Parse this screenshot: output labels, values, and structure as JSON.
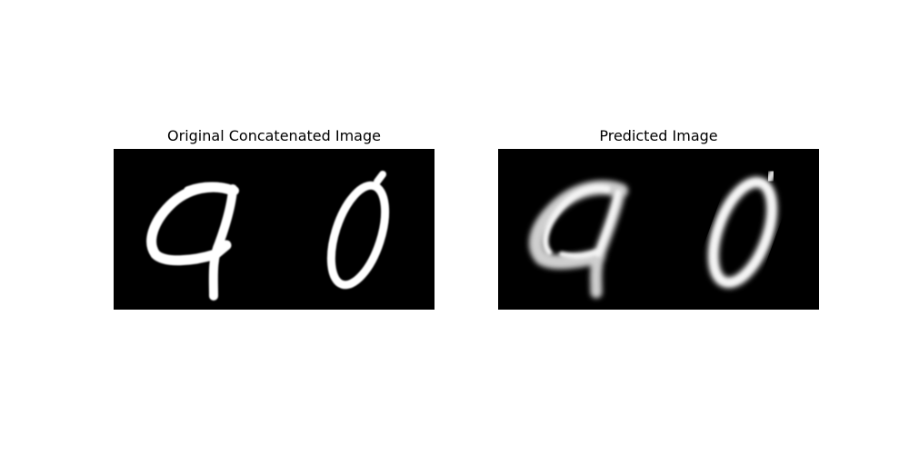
{
  "figure": {
    "background": "#ffffff"
  },
  "panels": {
    "original": {
      "title": "Original Concatenated Image",
      "digits": [
        "9",
        "0"
      ]
    },
    "predicted": {
      "title": "Predicted Image",
      "digits": [
        "9",
        "0"
      ]
    }
  },
  "colors": {
    "image_background": "#000000",
    "stroke": "#ffffff"
  }
}
